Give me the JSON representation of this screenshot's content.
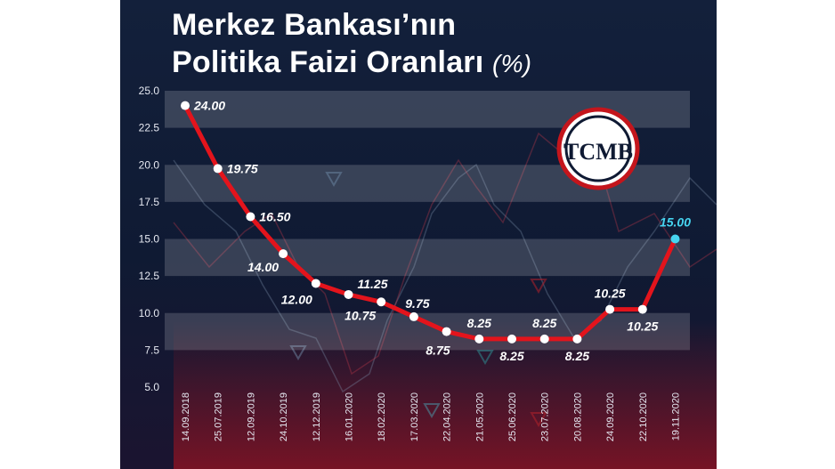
{
  "title_line1": "Merkez Bankası’nın",
  "title_line2": "Politika Faizi Oranları",
  "title_unit": "(%)",
  "logo_text": "TCMB",
  "colors": {
    "line": "#e3141c",
    "marker": "#ffffff",
    "highlight": "#46d4f0",
    "band": "#ffffff",
    "background": "#13203b"
  },
  "chart_data": {
    "type": "line",
    "categories": [
      "14.09.2018",
      "25.07.2019",
      "12.09.2019",
      "24.10.2019",
      "12.12.2019",
      "16.01.2020",
      "18.02.2020",
      "17.03.2020",
      "22.04.2020",
      "21.05.2020",
      "25.06.2020",
      "23.07.2020",
      "20.08.2020",
      "24.09.2020",
      "22.10.2020",
      "19.11.2020"
    ],
    "values": [
      24.0,
      19.75,
      16.5,
      14.0,
      12.0,
      11.25,
      10.75,
      9.75,
      8.75,
      8.25,
      8.25,
      8.25,
      8.25,
      10.25,
      10.25,
      15.0
    ],
    "value_labels": [
      "24.00",
      "19.75",
      "16.50",
      "14.00",
      "12.00",
      "11.25",
      "10.75",
      "9.75",
      "8.75",
      "8.25",
      "8.25",
      "8.25",
      "8.25",
      "10.25",
      "10.25",
      "15.00"
    ],
    "yticks": [
      "5.0",
      "7.5",
      "10.0",
      "12.5",
      "15.0",
      "17.5",
      "20.0",
      "22.5",
      "25.0"
    ],
    "ylim": [
      5,
      25
    ],
    "grid": true,
    "highlight_last": true
  }
}
